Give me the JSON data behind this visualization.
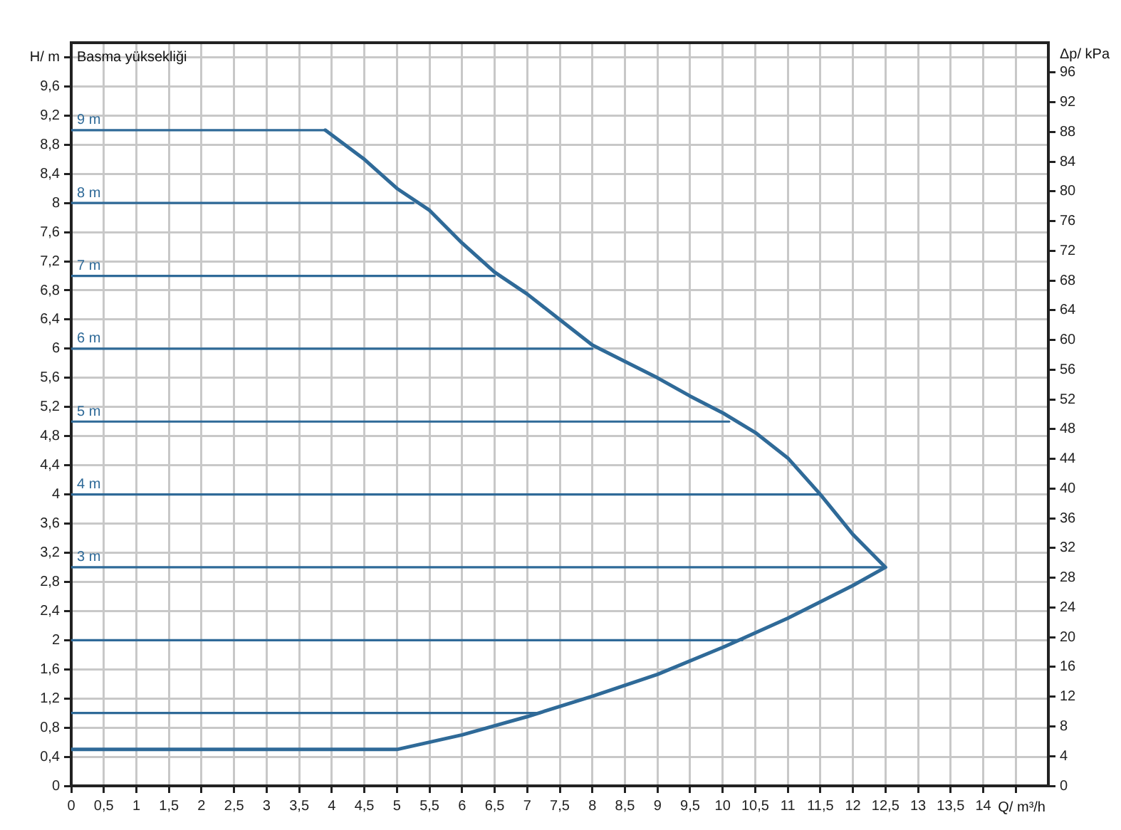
{
  "chart_data": {
    "type": "line",
    "title": "Basma yüksekliği",
    "xlabel": "Q/ m³/h",
    "ylabel": "H/ m",
    "y2label": "Δp/ kPa",
    "xlim": [
      0,
      15
    ],
    "xticks": [
      0,
      {
        "value": 0.5,
        "label": "0,5"
      },
      1,
      {
        "value": 1.5,
        "label": "1,5"
      },
      2,
      {
        "value": 2.5,
        "label": "2,5"
      },
      3,
      {
        "value": 3.5,
        "label": "3,5"
      },
      4,
      {
        "value": 4.5,
        "label": "4,5"
      },
      5,
      {
        "value": 5.5,
        "label": "5,5"
      },
      6,
      {
        "value": 6.5,
        "label": "6,5"
      },
      7,
      {
        "value": 7.5,
        "label": "7,5"
      },
      8,
      {
        "value": 8.5,
        "label": "8,5"
      },
      9,
      {
        "value": 9.5,
        "label": "9,5"
      },
      10,
      {
        "value": 10.5,
        "label": "10,5"
      },
      11,
      {
        "value": 11.5,
        "label": "11,5"
      },
      12,
      {
        "value": 12.5,
        "label": "12,5"
      },
      13,
      {
        "value": 13.5,
        "label": "13,5"
      },
      14,
      {
        "value": 14.5,
        "label": null
      }
    ],
    "ylim": [
      0,
      10.2
    ],
    "yticks": [
      0,
      {
        "value": 0.4,
        "label": "0,4"
      },
      {
        "value": 0.8,
        "label": "0,8"
      },
      {
        "value": 1.2,
        "label": "1,2"
      },
      {
        "value": 1.6,
        "label": "1,6"
      },
      2,
      {
        "value": 2.4,
        "label": "2,4"
      },
      {
        "value": 2.8,
        "label": "2,8"
      },
      {
        "value": 3.2,
        "label": "3,2"
      },
      {
        "value": 3.6,
        "label": "3,6"
      },
      4,
      {
        "value": 4.4,
        "label": "4,4"
      },
      {
        "value": 4.8,
        "label": "4,8"
      },
      {
        "value": 5.2,
        "label": "5,2"
      },
      {
        "value": 5.6,
        "label": "5,6"
      },
      6,
      {
        "value": 6.4,
        "label": "6,4"
      },
      {
        "value": 6.8,
        "label": "6,8"
      },
      {
        "value": 7.2,
        "label": "7,2"
      },
      {
        "value": 7.6,
        "label": "7,6"
      },
      8,
      {
        "value": 8.4,
        "label": "8,4"
      },
      {
        "value": 8.8,
        "label": "8,8"
      },
      {
        "value": 9.2,
        "label": "9,2"
      },
      {
        "value": 9.6,
        "label": "9,6"
      },
      {
        "value": 10,
        "label": null
      }
    ],
    "y2lim": [
      0,
      100
    ],
    "y2ticks": [
      0,
      4,
      8,
      12,
      16,
      20,
      24,
      28,
      32,
      36,
      40,
      44,
      48,
      52,
      56,
      60,
      64,
      68,
      72,
      76,
      80,
      84,
      88,
      92,
      96
    ],
    "grid": true,
    "legend": false,
    "marker": "none",
    "line_style": "solid",
    "series": [
      {
        "color": "#2f6a98",
        "x": [
          0,
          5,
          6,
          7,
          8,
          9,
          10,
          11,
          12,
          12.5,
          12,
          11.5,
          11,
          10.5,
          10,
          9.5,
          9,
          8,
          7.5,
          7,
          6.5,
          6,
          5.5,
          5,
          4.5,
          3.9
        ],
        "values": [
          0.5,
          0.5,
          0.7,
          0.95,
          1.23,
          1.53,
          1.9,
          2.3,
          2.75,
          3,
          3.45,
          4,
          4.5,
          4.85,
          5.12,
          5.35,
          5.6,
          6.05,
          6.4,
          6.75,
          7.05,
          7.45,
          7.9,
          8.2,
          8.6,
          9
        ]
      },
      {
        "name": "9 m",
        "color": "#2f6a98",
        "x": [
          0,
          3.9
        ],
        "values": [
          9,
          9
        ]
      },
      {
        "name": "8 m",
        "color": "#2f6a98",
        "x": [
          0,
          5.25
        ],
        "values": [
          8,
          8
        ]
      },
      {
        "name": "7 m",
        "color": "#2f6a98",
        "x": [
          0,
          6.5
        ],
        "values": [
          7,
          7
        ]
      },
      {
        "name": "6 m",
        "color": "#2f6a98",
        "x": [
          0,
          8
        ],
        "values": [
          6,
          6
        ]
      },
      {
        "name": "5 m",
        "color": "#2f6a98",
        "x": [
          0,
          10.1
        ],
        "values": [
          5,
          5
        ]
      },
      {
        "name": "4 m",
        "color": "#2f6a98",
        "x": [
          0,
          11.5
        ],
        "values": [
          4,
          4
        ]
      },
      {
        "name": "3 m",
        "color": "#2f6a98",
        "x": [
          0,
          12.5
        ],
        "values": [
          3,
          3
        ]
      },
      {
        "color": "#2f6a98",
        "x": [
          0,
          10.3
        ],
        "values": [
          2,
          2
        ]
      },
      {
        "color": "#2f6a98",
        "x": [
          0,
          7.2
        ],
        "values": [
          1,
          1
        ]
      }
    ]
  }
}
